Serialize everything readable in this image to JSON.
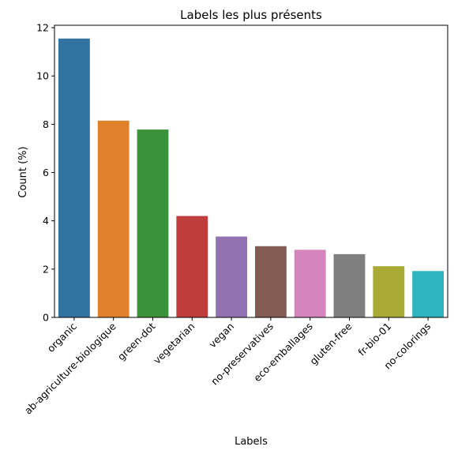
{
  "chart_data": {
    "type": "bar",
    "title": "Labels les plus présents",
    "xlabel": "Labels",
    "ylabel": "Count (%)",
    "ylim": [
      0,
      12.1
    ],
    "yticks": [
      0,
      2,
      4,
      6,
      8,
      10,
      12
    ],
    "categories": [
      "organic",
      "ab-agriculture-biologique",
      "green-dot",
      "vegetarian",
      "vegan",
      "no-preservatives",
      "eco-emballages",
      "gluten-free",
      "fr-bio-01",
      "no-colorings"
    ],
    "values": [
      11.55,
      8.15,
      7.78,
      4.2,
      3.35,
      2.95,
      2.8,
      2.62,
      2.12,
      1.92
    ],
    "colors": [
      "#3274a1",
      "#e1812c",
      "#3a923a",
      "#c03d3e",
      "#9372b2",
      "#845b53",
      "#d684bd",
      "#7f7f7f",
      "#a9aa35",
      "#2eb3c1"
    ],
    "grid": false,
    "legend": "none"
  }
}
